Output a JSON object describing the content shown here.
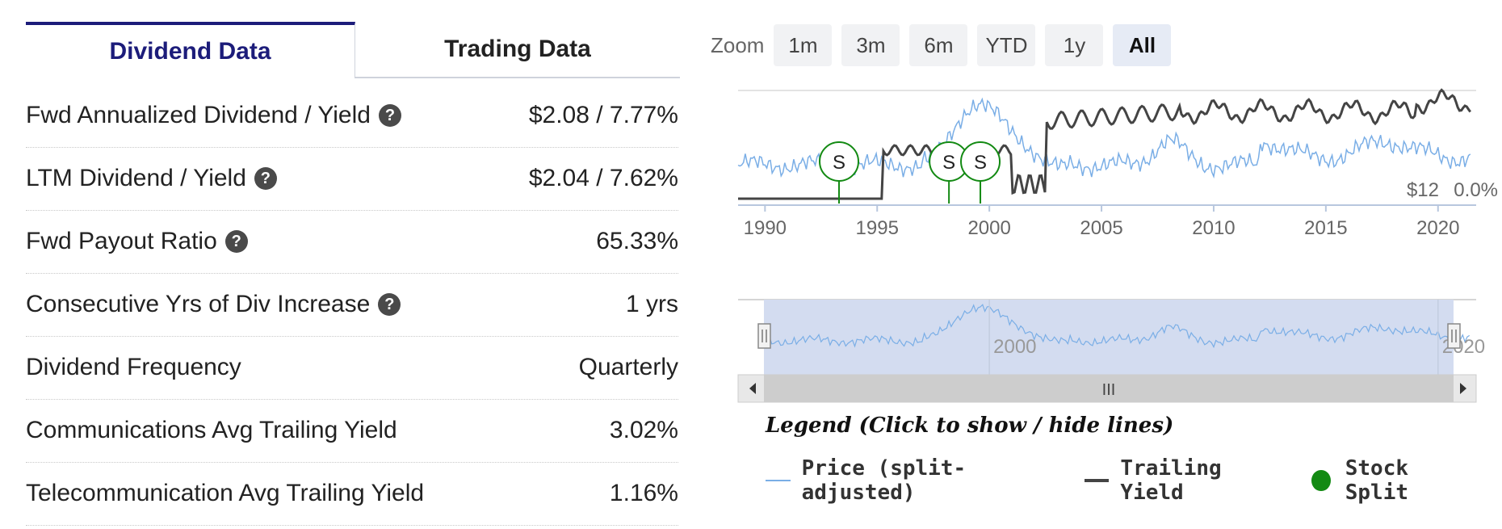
{
  "tabs": [
    {
      "label": "Dividend Data",
      "active": true
    },
    {
      "label": "Trading Data",
      "active": false
    }
  ],
  "rows": [
    {
      "label": "Fwd Annualized Dividend / Yield",
      "value": "$2.08 / 7.77%",
      "help": true
    },
    {
      "label": "LTM Dividend / Yield",
      "value": "$2.04 / 7.62%",
      "help": true
    },
    {
      "label": "Fwd Payout Ratio",
      "value": "65.33%",
      "help": true
    },
    {
      "label": "Consecutive Yrs of Div Increase",
      "value": "1 yrs",
      "help": true
    },
    {
      "label": "Dividend Frequency",
      "value": "Quarterly",
      "help": false
    },
    {
      "label": "Communications Avg Trailing Yield",
      "value": "3.02%",
      "help": false
    },
    {
      "label": "Telecommunication Avg Trailing Yield",
      "value": "1.16%",
      "help": false
    }
  ],
  "help_glyph": "?",
  "zoom": {
    "label": "Zoom",
    "options": [
      "1m",
      "3m",
      "6m",
      "YTD",
      "1y",
      "All"
    ],
    "selected": "All"
  },
  "chart": {
    "x_ticks": [
      "1990",
      "1995",
      "2000",
      "2005",
      "2010",
      "2015",
      "2020"
    ],
    "price_label": "$12",
    "yield_label": "0.0%",
    "split_marker": "S",
    "split_years": [
      1993.3,
      1998.2,
      1999.6
    ],
    "navigator_ticks": [
      "2000",
      "2020"
    ],
    "scrollbar_glyph": "III"
  },
  "legend": {
    "title": "Legend (Click to show / hide lines)",
    "items": [
      {
        "label": "Price (split-adjusted)",
        "kind": "line",
        "color": "#7aaee6"
      },
      {
        "label": "Trailing Yield",
        "kind": "line",
        "color": "#444444"
      },
      {
        "label": "Stock Split",
        "kind": "dot",
        "color": "#138a13"
      }
    ]
  },
  "colors": {
    "accent": "#1c1c7a",
    "price": "#7aaee6",
    "yield": "#444444",
    "split": "#138a13",
    "navigator_fill": "#d3dcf0"
  }
}
